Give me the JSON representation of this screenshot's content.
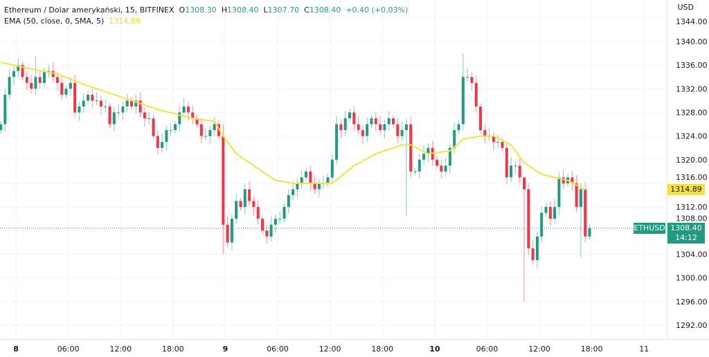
{
  "header": {
    "title": "Ethereum / Dolar amerykański, 15, BITFINEX",
    "open_label": "O",
    "open": "1308.30",
    "high_label": "H",
    "high": "1308.40",
    "low_label": "L",
    "low": "1307.70",
    "close_label": "C",
    "close": "1308.40",
    "change": "+0.40 (+0.03%)",
    "indicator": "EMA (50, close, 0, SMA, 5)",
    "indicator_value": "1314.89"
  },
  "axis": {
    "currency": "USD"
  },
  "tags": {
    "ema_value": "1314.89",
    "symbol": "ETHUSD",
    "last_price": "1308.40",
    "countdown": "14:12"
  },
  "colors": {
    "up": "#1f9b82",
    "down": "#f23645",
    "ema": "#f7e23a",
    "grid": "#f0f3fa"
  },
  "chart_data": {
    "type": "candlestick",
    "symbol": "ETHUSD",
    "ylim": [
      1290,
      1346
    ],
    "yticks": [
      1292,
      1296,
      1300,
      1304,
      1308,
      1312,
      1316,
      1320,
      1324,
      1328,
      1332,
      1336,
      1340,
      1344
    ],
    "ytick_labels": [
      "1292.00",
      "1296.00",
      "1300.00",
      "1304.00",
      "1308.00",
      "1312.00",
      "1316.00",
      "1320.00",
      "1324.00",
      "1328.00",
      "1332.00",
      "1336.00",
      "1340.00",
      "1344.00"
    ],
    "xticks": [
      {
        "bar": 3.5,
        "label": "8",
        "bold": true
      },
      {
        "bar": 15.5,
        "label": "06:00"
      },
      {
        "bar": 27.5,
        "label": "12:00"
      },
      {
        "bar": 39.5,
        "label": "18:00"
      },
      {
        "bar": 51.5,
        "label": "9",
        "bold": true
      },
      {
        "bar": 63.5,
        "label": "06:00"
      },
      {
        "bar": 75.5,
        "label": "12:00"
      },
      {
        "bar": 87.5,
        "label": "18:00"
      },
      {
        "bar": 99.5,
        "label": "10",
        "bold": true
      },
      {
        "bar": 111.5,
        "label": "06:00"
      },
      {
        "bar": 123.5,
        "label": "12:00"
      },
      {
        "bar": 135.5,
        "label": "18:00"
      },
      {
        "bar": 147.5,
        "label": "11"
      }
    ],
    "closes": [
      1326,
      1331,
      1334,
      1335,
      1336,
      1334,
      1333,
      1332,
      1334,
      1333,
      1335,
      1335,
      1334,
      1333,
      1331,
      1332,
      1333,
      1328,
      1329,
      1330,
      1331,
      1330,
      1330,
      1329,
      1329,
      1326,
      1328,
      1328,
      1329,
      1330,
      1329,
      1330,
      1328,
      1327,
      1327,
      1324,
      1322,
      1323,
      1325,
      1325,
      1326,
      1328,
      1329,
      1328,
      1327,
      1326,
      1324,
      1324,
      1325,
      1326,
      1324,
      1309,
      1306,
      1310,
      1313,
      1312,
      1315,
      1313,
      1312,
      1310,
      1308,
      1307,
      1309,
      1310,
      1310,
      1312,
      1314,
      1315,
      1316,
      1317,
      1318,
      1316,
      1315,
      1316,
      1316,
      1317,
      1320,
      1326,
      1325,
      1327,
      1328,
      1326,
      1325,
      1324,
      1326,
      1327,
      1326,
      1325,
      1326,
      1327,
      1326,
      1324,
      1325,
      1326,
      1318,
      1318,
      1320,
      1321,
      1322,
      1320,
      1319,
      1318,
      1319,
      1322,
      1325,
      1326,
      1334,
      1334,
      1333,
      1329,
      1325,
      1324,
      1324,
      1323,
      1323,
      1322,
      1317,
      1319,
      1319,
      1317,
      1315,
      1305,
      1303,
      1307,
      1311,
      1312,
      1310,
      1312,
      1317,
      1316,
      1317,
      1316,
      1312,
      1315,
      1307,
      1308.4
    ],
    "wick_overrides": {
      "8": [
        1337.5,
        1331
      ],
      "51": [
        1326,
        1304
      ],
      "93": [
        1327,
        1310.5
      ],
      "106": [
        1338,
        1325
      ],
      "120": [
        1316,
        1296
      ],
      "133": [
        1316,
        1303.5
      ]
    },
    "ema": [
      [
        0,
        1336.5
      ],
      [
        6,
        1335.5
      ],
      [
        13,
        1334.5
      ],
      [
        20,
        1332.5
      ],
      [
        28,
        1330.5
      ],
      [
        36,
        1328.5
      ],
      [
        44,
        1327
      ],
      [
        49,
        1326.5
      ],
      [
        51,
        1324
      ],
      [
        54,
        1321
      ],
      [
        58,
        1319
      ],
      [
        63,
        1316.5
      ],
      [
        67,
        1316
      ],
      [
        76,
        1316
      ],
      [
        81,
        1319
      ],
      [
        86,
        1321
      ],
      [
        92,
        1322.5
      ],
      [
        94,
        1322.5
      ],
      [
        98,
        1321
      ],
      [
        103,
        1321.5
      ],
      [
        106,
        1323.5
      ],
      [
        110,
        1324
      ],
      [
        113,
        1324
      ],
      [
        117,
        1322.5
      ],
      [
        120,
        1319.5
      ],
      [
        124,
        1317.5
      ],
      [
        127,
        1317
      ],
      [
        130,
        1316.5
      ],
      [
        134,
        1314.9
      ]
    ],
    "last_price": 1308.4
  }
}
